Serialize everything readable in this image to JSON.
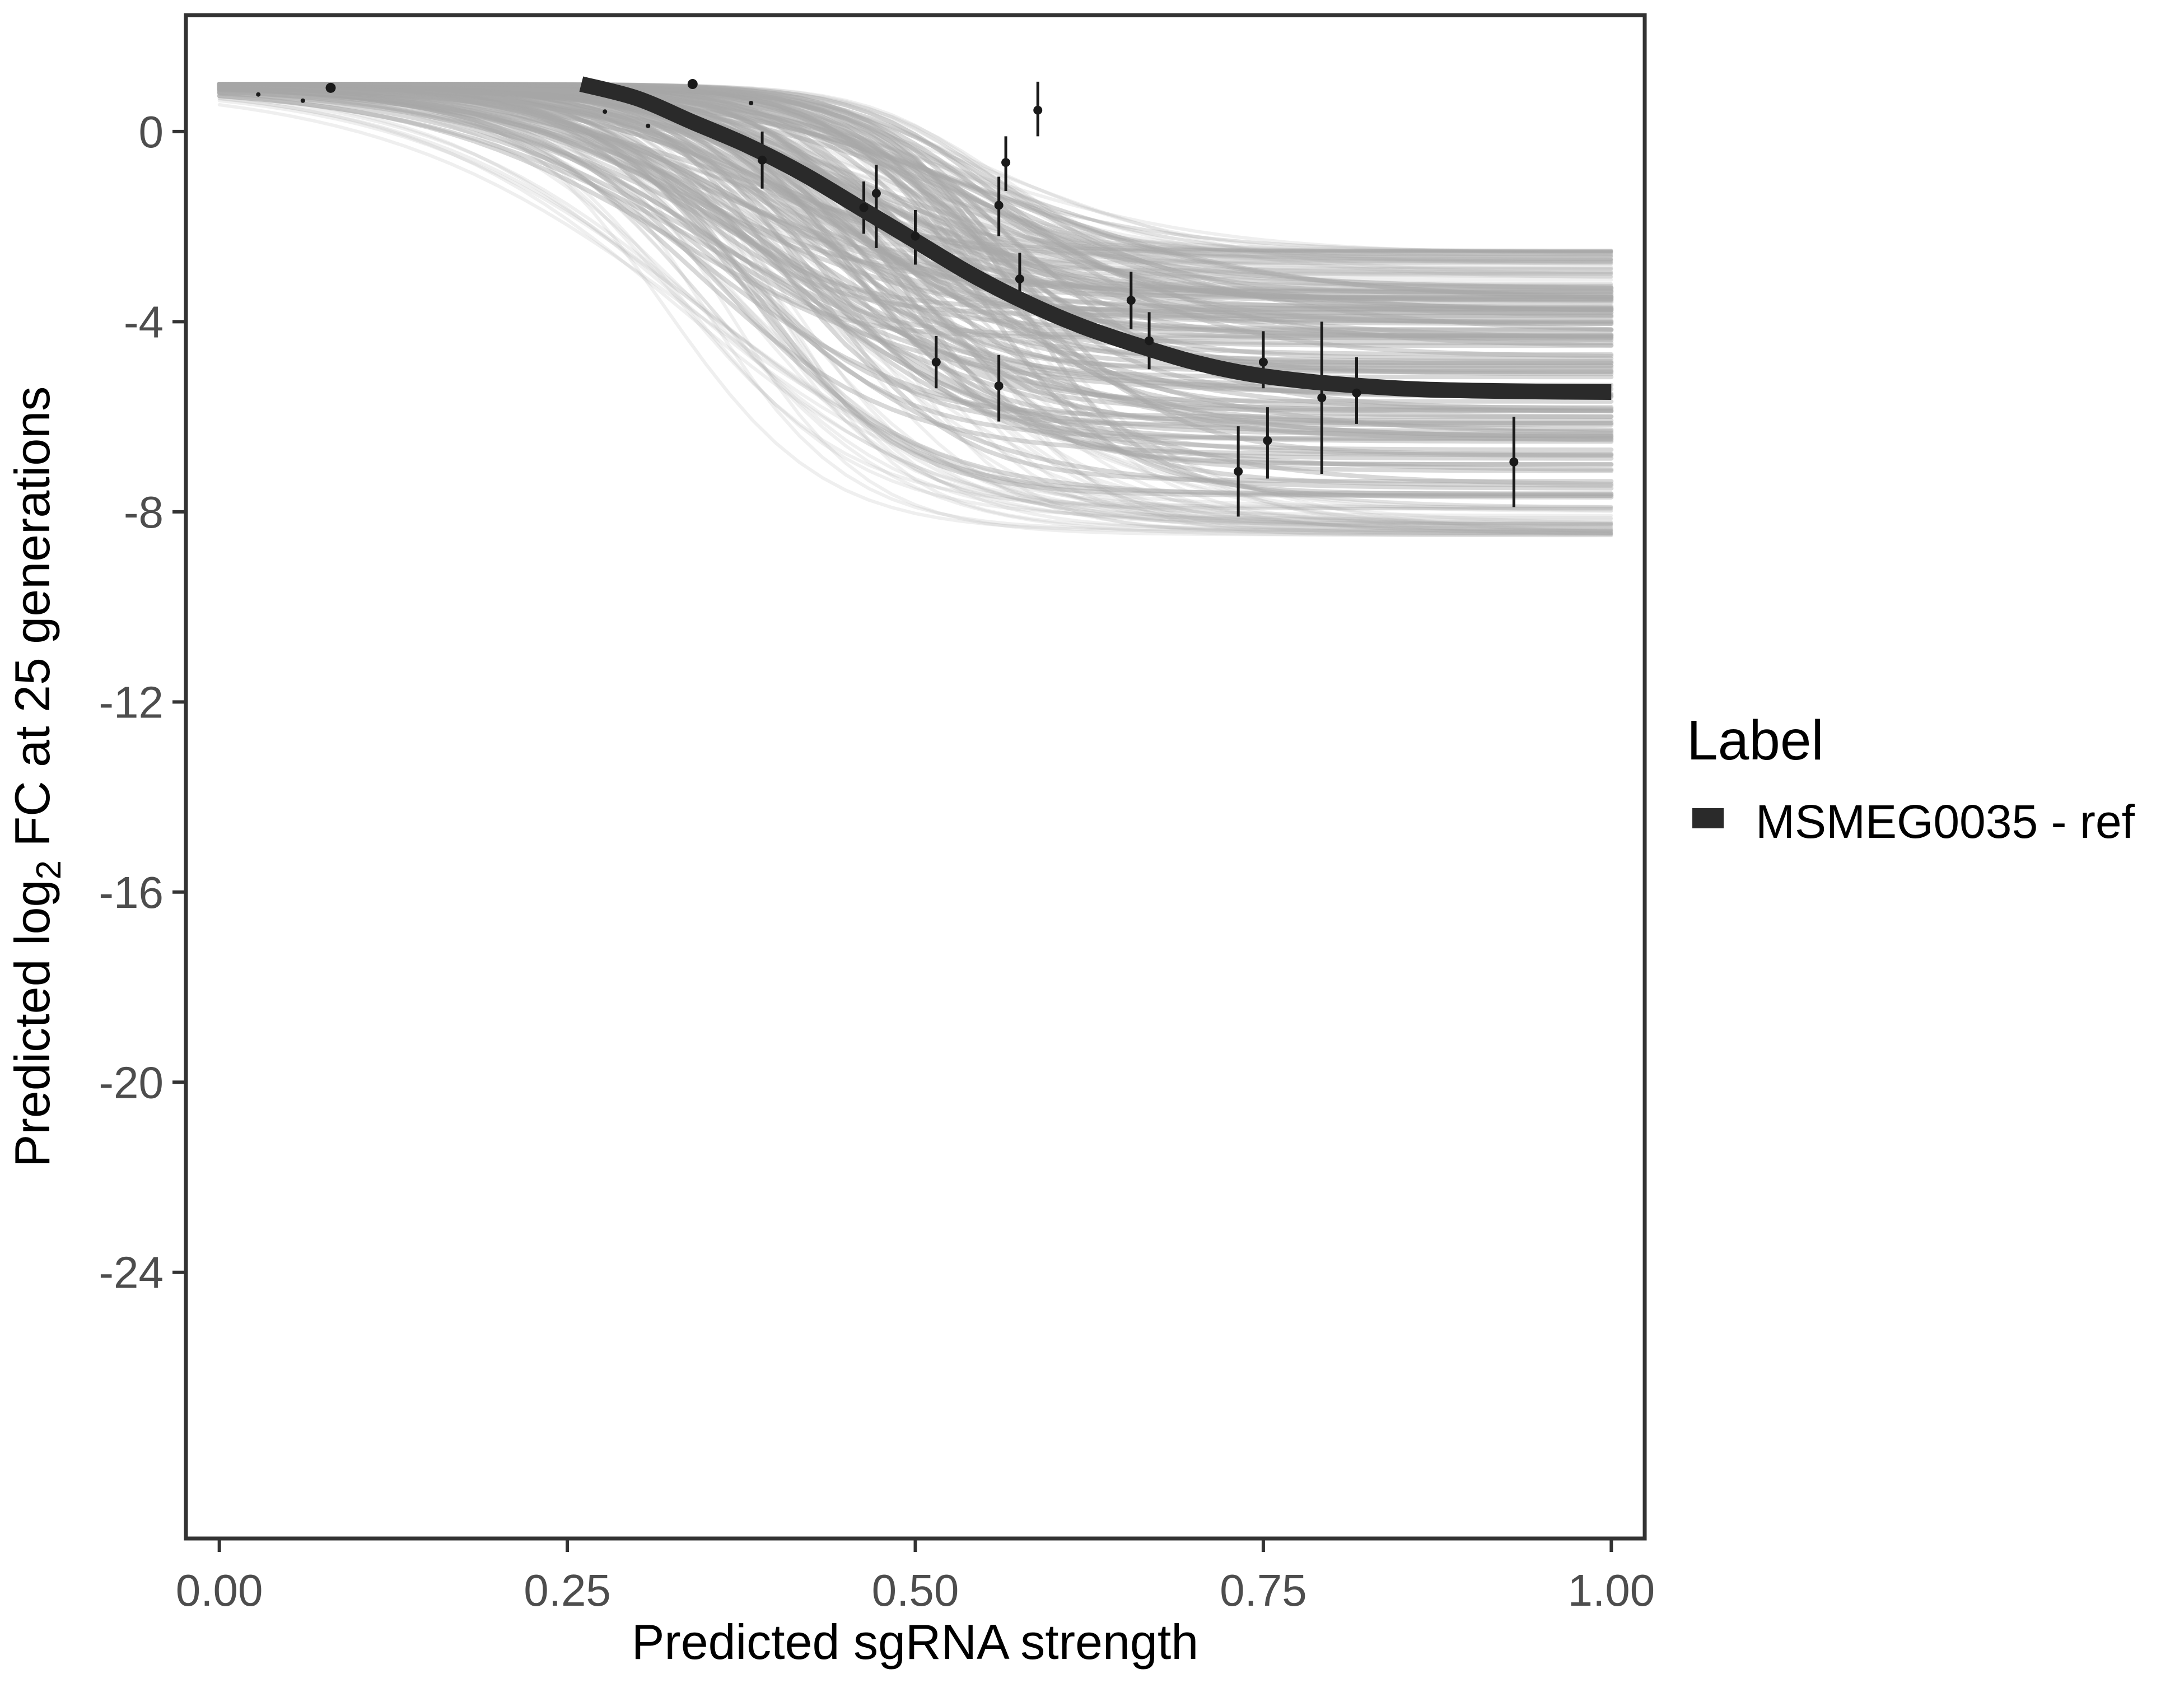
{
  "chart_data": {
    "type": "line",
    "title": "",
    "xlabel": "Predicted sgRNA strength",
    "ylabel_main": "Predicted  log",
    "ylabel_sub": "2",
    "ylabel_rest": " FC at 25 generations",
    "xlim": [
      -0.024,
      1.024
    ],
    "ylim": [
      -29.6,
      2.45
    ],
    "xticks": [
      0,
      0.25,
      0.5,
      0.75,
      1
    ],
    "xtick_labels": [
      "0.00",
      "0.25",
      "0.50",
      "0.75",
      "1.00"
    ],
    "yticks": [
      0,
      -4,
      -8,
      -12,
      -16,
      -20,
      -24
    ],
    "ytick_labels": [
      "0",
      "-4",
      "-8",
      "-12",
      "-16",
      "-20",
      "-24"
    ],
    "grid": false,
    "legend": {
      "title": "Label",
      "position": "right",
      "entries": [
        {
          "label": "MSMEG0035 - ref",
          "color": "#2a2a2a"
        }
      ]
    },
    "fit": {
      "name": "MSMEG0035 - ref",
      "x": [
        0.26,
        0.3,
        0.34,
        0.38,
        0.42,
        0.46,
        0.5,
        0.54,
        0.58,
        0.62,
        0.66,
        0.7,
        0.74,
        0.78,
        0.82,
        0.86,
        0.9,
        0.95,
        1.0
      ],
      "y": [
        1.0,
        0.7,
        0.2,
        -0.3,
        -0.9,
        -1.6,
        -2.3,
        -3.0,
        -3.6,
        -4.1,
        -4.5,
        -4.85,
        -5.1,
        -5.25,
        -5.35,
        -5.42,
        -5.45,
        -5.47,
        -5.48
      ],
      "color": "#2a2a2a"
    },
    "posterior_band": {
      "color": "#a9a9a9",
      "x_start": 0.0,
      "x_end": 1.0,
      "upper_asymptote": 1.0,
      "lower_asymptote_range": [
        -8.5,
        -2.5
      ],
      "midpoint_range": [
        0.32,
        0.58
      ]
    },
    "points": [
      {
        "x": 0.028,
        "y": 0.78
      },
      {
        "x": 0.06,
        "y": 0.65
      },
      {
        "x": 0.08,
        "y": 0.92
      },
      {
        "x": 0.277,
        "y": 0.42
      },
      {
        "x": 0.308,
        "y": 0.12
      },
      {
        "x": 0.34,
        "y": 1.0
      },
      {
        "x": 0.382,
        "y": 0.6
      },
      {
        "x": 0.39,
        "y": -0.6,
        "ymin": -1.2,
        "ymax": 0.0
      },
      {
        "x": 0.463,
        "y": -1.6,
        "ymin": -2.15,
        "ymax": -1.05
      },
      {
        "x": 0.472,
        "y": -1.3,
        "ymin": -2.45,
        "ymax": -0.7
      },
      {
        "x": 0.5,
        "y": -2.2,
        "ymin": -2.8,
        "ymax": -1.65
      },
      {
        "x": 0.515,
        "y": -4.85,
        "ymin": -5.4,
        "ymax": -4.3
      },
      {
        "x": 0.56,
        "y": -1.55,
        "ymin": -2.2,
        "ymax": -0.95
      },
      {
        "x": 0.56,
        "y": -5.35,
        "ymin": -6.1,
        "ymax": -4.7
      },
      {
        "x": 0.565,
        "y": -0.65,
        "ymin": -1.25,
        "ymax": -0.1
      },
      {
        "x": 0.575,
        "y": -3.1,
        "ymin": -3.7,
        "ymax": -2.55
      },
      {
        "x": 0.588,
        "y": 0.45,
        "ymin": -0.1,
        "ymax": 1.05
      },
      {
        "x": 0.655,
        "y": -3.55,
        "ymin": -4.15,
        "ymax": -2.95
      },
      {
        "x": 0.668,
        "y": -4.4,
        "ymin": -5.0,
        "ymax": -3.8
      },
      {
        "x": 0.732,
        "y": -7.15,
        "ymin": -8.1,
        "ymax": -6.2
      },
      {
        "x": 0.75,
        "y": -4.85,
        "ymin": -5.4,
        "ymax": -4.2
      },
      {
        "x": 0.753,
        "y": -6.5,
        "ymin": -7.3,
        "ymax": -5.8
      },
      {
        "x": 0.792,
        "y": -5.6,
        "ymin": -7.2,
        "ymax": -4.0
      },
      {
        "x": 0.817,
        "y": -5.5,
        "ymin": -6.15,
        "ymax": -4.75
      },
      {
        "x": 0.93,
        "y": -6.95,
        "ymin": -7.9,
        "ymax": -6.0
      }
    ]
  }
}
